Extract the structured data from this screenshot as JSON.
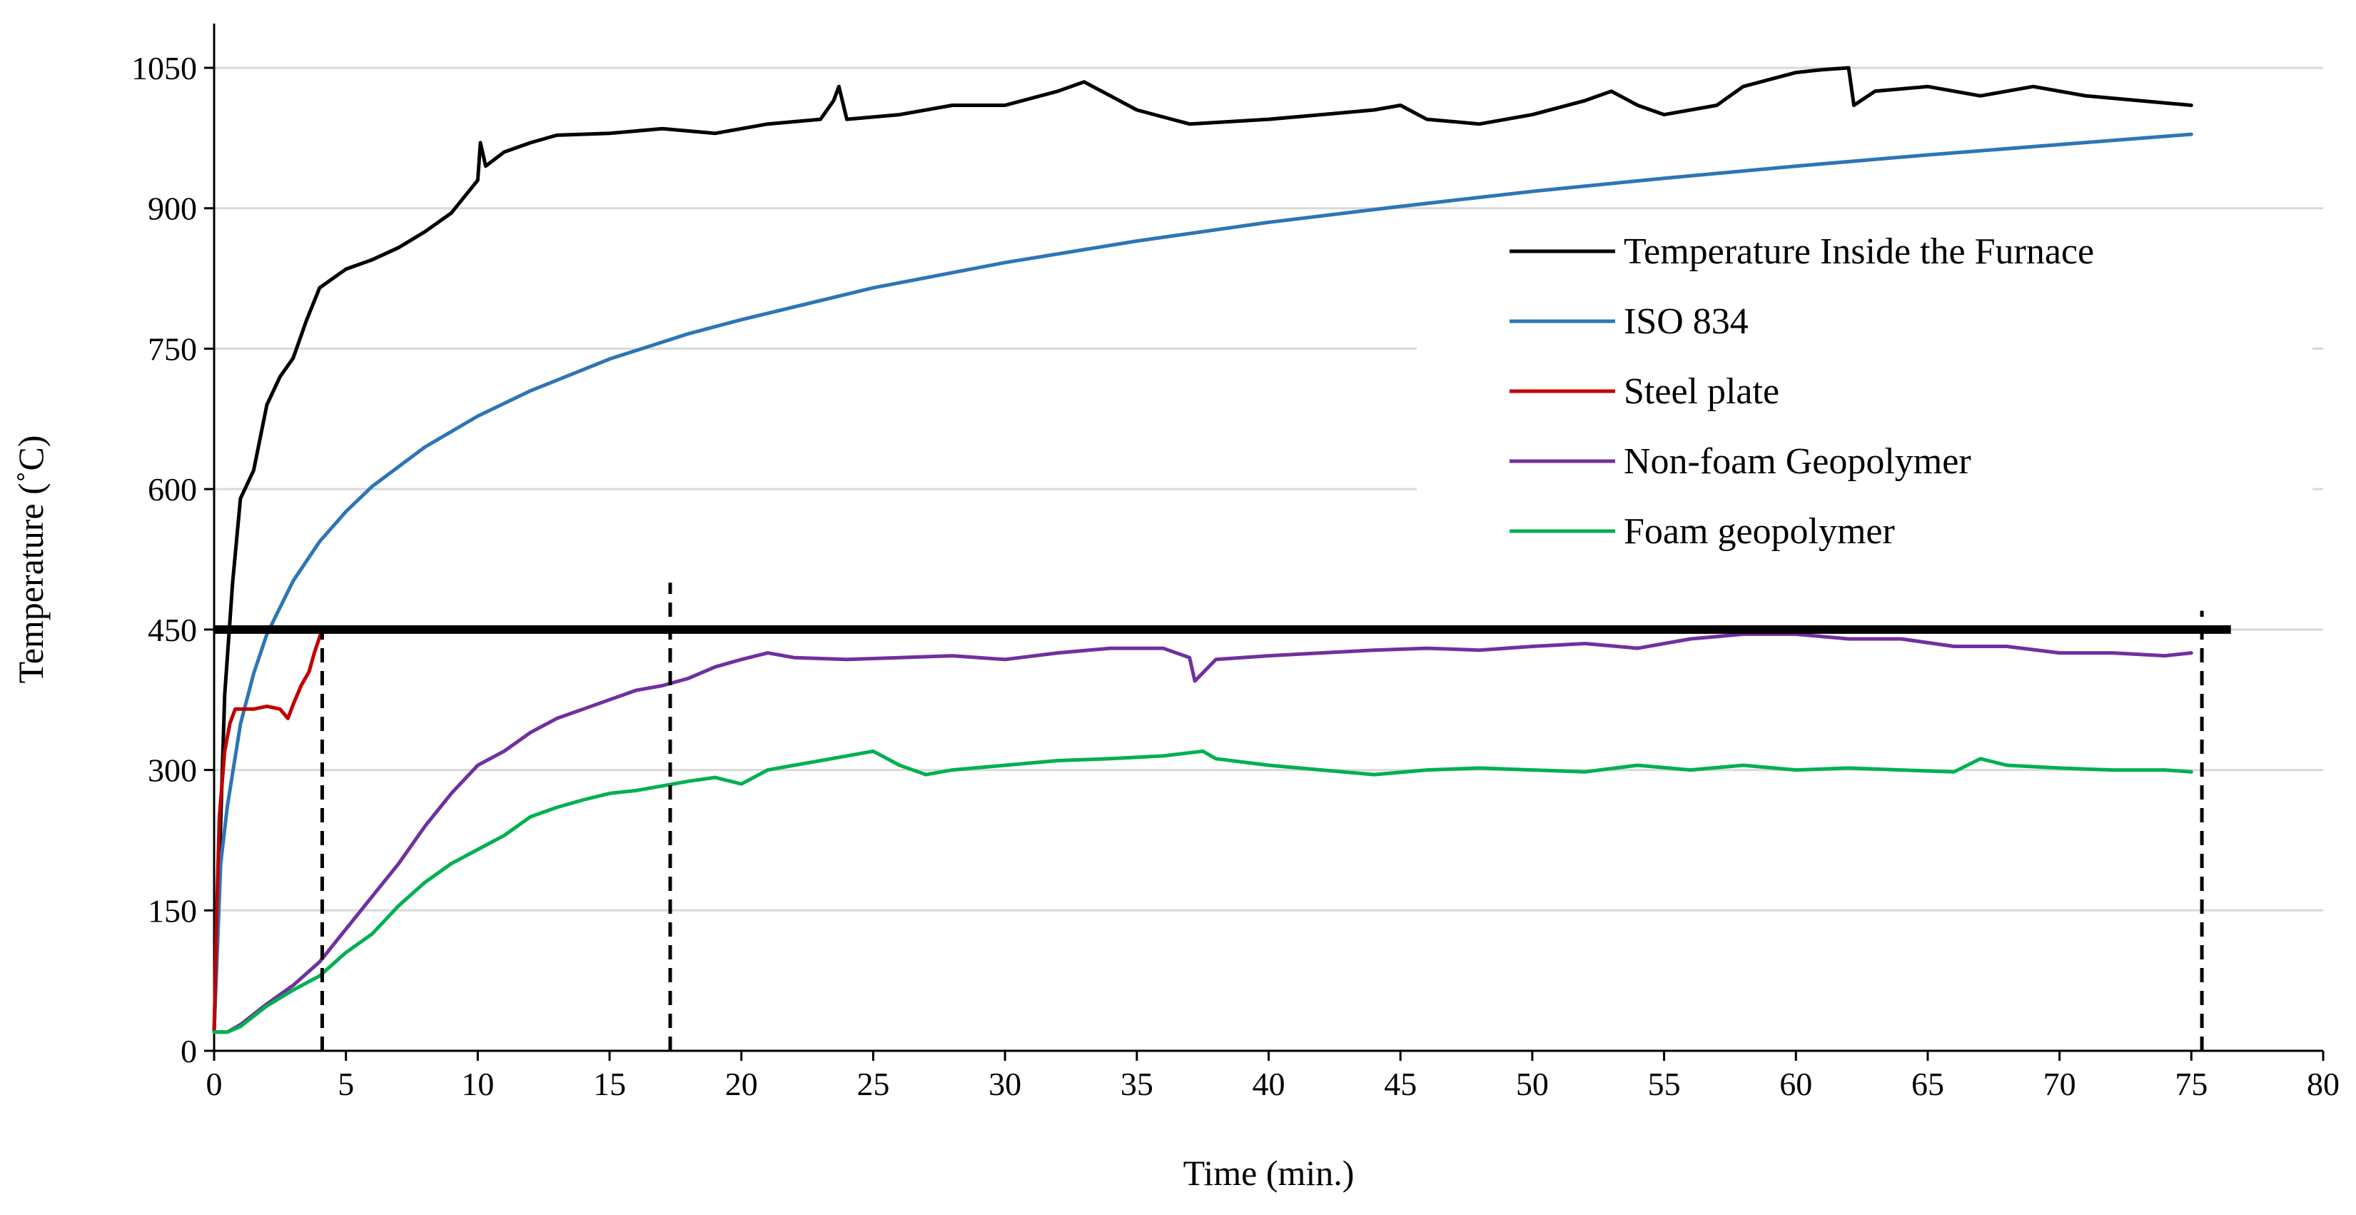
{
  "chart_data": {
    "type": "line",
    "title": "",
    "xlabel": "Time (min.)",
    "ylabel": "Temperature (˚C)",
    "xlim": [
      0,
      80
    ],
    "ylim": [
      0,
      1050
    ],
    "xticks": [
      0,
      5,
      10,
      15,
      20,
      25,
      30,
      35,
      40,
      45,
      50,
      55,
      60,
      65,
      70,
      75,
      80
    ],
    "yticks": [
      0,
      150,
      300,
      450,
      600,
      750,
      900,
      1050
    ],
    "grid": "horizontal",
    "legend_position": "right",
    "series": [
      {
        "name": "Temperature Inside the Furnace",
        "color": "#000000",
        "points": [
          [
            0,
            20
          ],
          [
            0.2,
            200
          ],
          [
            0.4,
            380
          ],
          [
            0.7,
            500
          ],
          [
            1,
            590
          ],
          [
            1.5,
            620
          ],
          [
            2,
            690
          ],
          [
            2.5,
            720
          ],
          [
            3,
            740
          ],
          [
            3.5,
            780
          ],
          [
            4,
            815
          ],
          [
            5,
            835
          ],
          [
            6,
            845
          ],
          [
            7,
            858
          ],
          [
            8,
            875
          ],
          [
            9,
            895
          ],
          [
            10,
            930
          ],
          [
            10.1,
            970
          ],
          [
            10.3,
            945
          ],
          [
            11,
            960
          ],
          [
            12,
            970
          ],
          [
            13,
            978
          ],
          [
            15,
            980
          ],
          [
            17,
            985
          ],
          [
            19,
            980
          ],
          [
            21,
            990
          ],
          [
            23,
            995
          ],
          [
            23.5,
            1015
          ],
          [
            23.7,
            1030
          ],
          [
            24,
            995
          ],
          [
            26,
            1000
          ],
          [
            28,
            1010
          ],
          [
            30,
            1010
          ],
          [
            32,
            1025
          ],
          [
            33,
            1035
          ],
          [
            34,
            1020
          ],
          [
            35,
            1005
          ],
          [
            37,
            990
          ],
          [
            40,
            995
          ],
          [
            42,
            1000
          ],
          [
            44,
            1005
          ],
          [
            45,
            1010
          ],
          [
            46,
            995
          ],
          [
            48,
            990
          ],
          [
            50,
            1000
          ],
          [
            52,
            1015
          ],
          [
            53,
            1025
          ],
          [
            54,
            1010
          ],
          [
            55,
            1000
          ],
          [
            57,
            1010
          ],
          [
            58,
            1030
          ],
          [
            60,
            1045
          ],
          [
            61,
            1048
          ],
          [
            62,
            1050
          ],
          [
            62.2,
            1010
          ],
          [
            63,
            1025
          ],
          [
            65,
            1030
          ],
          [
            67,
            1020
          ],
          [
            69,
            1030
          ],
          [
            71,
            1020
          ],
          [
            73,
            1015
          ],
          [
            75,
            1010
          ]
        ]
      },
      {
        "name": "ISO 834",
        "color": "#2e75b6",
        "points": [
          [
            0,
            20
          ],
          [
            0.25,
            200
          ],
          [
            0.5,
            261
          ],
          [
            1,
            349
          ],
          [
            1.5,
            403
          ],
          [
            2,
            445
          ],
          [
            3,
            502
          ],
          [
            4,
            544
          ],
          [
            5,
            576
          ],
          [
            6,
            603
          ],
          [
            8,
            645
          ],
          [
            10,
            678
          ],
          [
            12,
            705
          ],
          [
            15,
            739
          ],
          [
            18,
            766
          ],
          [
            20,
            781
          ],
          [
            25,
            815
          ],
          [
            30,
            842
          ],
          [
            35,
            865
          ],
          [
            40,
            885
          ],
          [
            45,
            902
          ],
          [
            50,
            918
          ],
          [
            55,
            932
          ],
          [
            60,
            945
          ],
          [
            65,
            957
          ],
          [
            70,
            968
          ],
          [
            75,
            979
          ]
        ]
      },
      {
        "name": "Steel plate",
        "color": "#c00000",
        "points": [
          [
            0,
            20
          ],
          [
            0.1,
            150
          ],
          [
            0.2,
            250
          ],
          [
            0.4,
            320
          ],
          [
            0.6,
            350
          ],
          [
            0.8,
            365
          ],
          [
            1,
            365
          ],
          [
            1.5,
            365
          ],
          [
            2,
            368
          ],
          [
            2.5,
            365
          ],
          [
            2.8,
            355
          ],
          [
            3,
            370
          ],
          [
            3.3,
            390
          ],
          [
            3.6,
            405
          ],
          [
            3.8,
            425
          ],
          [
            4.1,
            450
          ]
        ]
      },
      {
        "name": "Non-foam Geopolymer",
        "color": "#7030a0",
        "points": [
          [
            0,
            20
          ],
          [
            0.5,
            20
          ],
          [
            1,
            28
          ],
          [
            2,
            50
          ],
          [
            3,
            70
          ],
          [
            4,
            95
          ],
          [
            5,
            130
          ],
          [
            6,
            165
          ],
          [
            7,
            200
          ],
          [
            8,
            240
          ],
          [
            9,
            275
          ],
          [
            10,
            305
          ],
          [
            11,
            320
          ],
          [
            12,
            340
          ],
          [
            13,
            355
          ],
          [
            14,
            365
          ],
          [
            15,
            375
          ],
          [
            16,
            385
          ],
          [
            17,
            390
          ],
          [
            18,
            398
          ],
          [
            19,
            410
          ],
          [
            20,
            418
          ],
          [
            21,
            425
          ],
          [
            22,
            420
          ],
          [
            24,
            418
          ],
          [
            26,
            420
          ],
          [
            28,
            422
          ],
          [
            30,
            418
          ],
          [
            32,
            425
          ],
          [
            34,
            430
          ],
          [
            36,
            430
          ],
          [
            37,
            420
          ],
          [
            37.2,
            395
          ],
          [
            38,
            418
          ],
          [
            40,
            422
          ],
          [
            42,
            425
          ],
          [
            44,
            428
          ],
          [
            46,
            430
          ],
          [
            48,
            428
          ],
          [
            50,
            432
          ],
          [
            52,
            435
          ],
          [
            54,
            430
          ],
          [
            56,
            440
          ],
          [
            58,
            445
          ],
          [
            60,
            445
          ],
          [
            62,
            440
          ],
          [
            64,
            440
          ],
          [
            66,
            432
          ],
          [
            68,
            432
          ],
          [
            70,
            425
          ],
          [
            72,
            425
          ],
          [
            74,
            422
          ],
          [
            75,
            425
          ]
        ]
      },
      {
        "name": "Foam geopolymer",
        "color": "#00b050",
        "points": [
          [
            0,
            20
          ],
          [
            0.5,
            20
          ],
          [
            1,
            26
          ],
          [
            2,
            48
          ],
          [
            3,
            65
          ],
          [
            4,
            80
          ],
          [
            5,
            105
          ],
          [
            6,
            125
          ],
          [
            7,
            155
          ],
          [
            8,
            180
          ],
          [
            9,
            200
          ],
          [
            10,
            215
          ],
          [
            11,
            230
          ],
          [
            12,
            250
          ],
          [
            13,
            260
          ],
          [
            14,
            268
          ],
          [
            15,
            275
          ],
          [
            16,
            278
          ],
          [
            17,
            283
          ],
          [
            18,
            288
          ],
          [
            19,
            292
          ],
          [
            20,
            285
          ],
          [
            21,
            300
          ],
          [
            22,
            305
          ],
          [
            23,
            310
          ],
          [
            24,
            315
          ],
          [
            25,
            320
          ],
          [
            26,
            305
          ],
          [
            27,
            295
          ],
          [
            28,
            300
          ],
          [
            30,
            305
          ],
          [
            32,
            310
          ],
          [
            34,
            312
          ],
          [
            36,
            315
          ],
          [
            37.5,
            320
          ],
          [
            38,
            312
          ],
          [
            40,
            305
          ],
          [
            42,
            300
          ],
          [
            44,
            295
          ],
          [
            46,
            300
          ],
          [
            48,
            302
          ],
          [
            50,
            300
          ],
          [
            52,
            298
          ],
          [
            54,
            305
          ],
          [
            56,
            300
          ],
          [
            58,
            305
          ],
          [
            60,
            300
          ],
          [
            62,
            302
          ],
          [
            64,
            300
          ],
          [
            66,
            298
          ],
          [
            67,
            312
          ],
          [
            68,
            305
          ],
          [
            70,
            302
          ],
          [
            72,
            300
          ],
          [
            74,
            300
          ],
          [
            75,
            298
          ]
        ]
      }
    ],
    "reference_lines": [
      {
        "type": "horizontal",
        "y": 450,
        "x_range": [
          0,
          76.5
        ],
        "style": "solid-thick",
        "color": "#000000"
      },
      {
        "type": "vertical",
        "x": 4.1,
        "y_range": [
          0,
          450
        ],
        "style": "dashed",
        "color": "#000000"
      },
      {
        "type": "vertical",
        "x": 17.3,
        "y_range": [
          0,
          500
        ],
        "style": "dashed",
        "color": "#000000"
      },
      {
        "type": "vertical",
        "x": 75.4,
        "y_range": [
          0,
          470
        ],
        "style": "dashed",
        "color": "#000000"
      }
    ]
  }
}
